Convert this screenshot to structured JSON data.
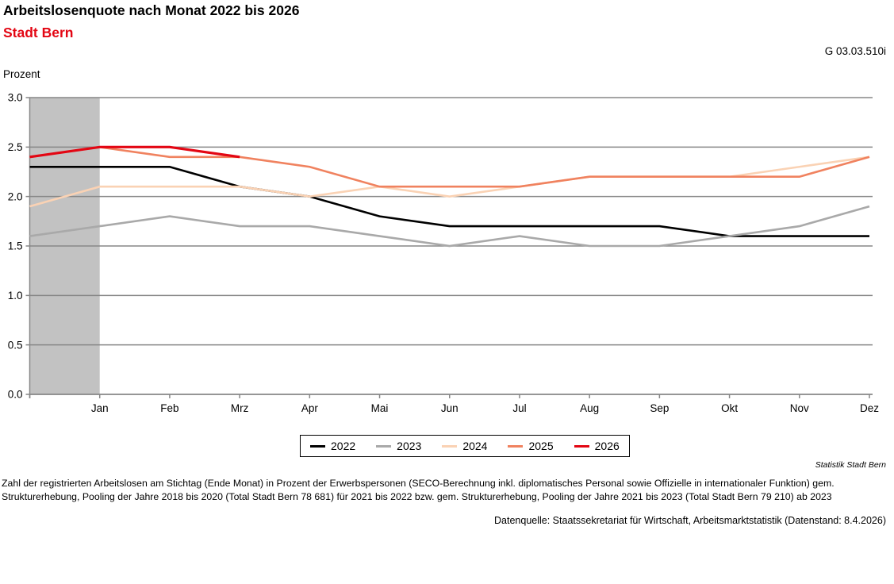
{
  "header": {
    "title": "Arbeitslosenquote nach Monat 2022 bis 2026",
    "subtitle": "Stadt Bern",
    "subtitle_color": "#e30613",
    "figure_code": "G 03.03.510i"
  },
  "chart_data": {
    "type": "line",
    "title": "Arbeitslosenquote nach Monat 2022 bis 2026",
    "subtitle": "Stadt Bern",
    "ylabel": "Prozent",
    "ylim": [
      0.0,
      3.0
    ],
    "ytick_step": 0.5,
    "ytick_labels": [
      "0.0",
      "0.5",
      "1.0",
      "1.5",
      "2.0",
      "2.5",
      "3.0"
    ],
    "x_labels": [
      "Jan",
      "Feb",
      "Mrz",
      "Apr",
      "Mai",
      "Jun",
      "Jul",
      "Aug",
      "Sep",
      "Okt",
      "Nov",
      "Dez"
    ],
    "x_start_note": "each series starts at the left plot edge with the previous year's December value",
    "grid": true,
    "axis_color": "#878787",
    "legend_position": "bottom-center",
    "highlight_band": {
      "from": "plot-left-edge",
      "to": "Jan",
      "color": "#c2c2c2"
    },
    "series": [
      {
        "name": "2022",
        "color": "#000000",
        "values_with_prev_dec": [
          2.3,
          2.3,
          2.3,
          2.1,
          2.0,
          1.8,
          1.7,
          1.7,
          1.7,
          1.7,
          1.6,
          1.6,
          1.6
        ]
      },
      {
        "name": "2023",
        "color": "#a9a9a9",
        "values_with_prev_dec": [
          1.6,
          1.7,
          1.8,
          1.7,
          1.7,
          1.6,
          1.5,
          1.6,
          1.5,
          1.5,
          1.6,
          1.7,
          1.9
        ]
      },
      {
        "name": "2024",
        "color": "#fad2b4",
        "values_with_prev_dec": [
          1.9,
          2.1,
          2.1,
          2.1,
          2.0,
          2.1,
          2.0,
          2.1,
          2.2,
          2.2,
          2.2,
          2.3,
          2.4
        ]
      },
      {
        "name": "2025",
        "color": "#f0825f",
        "values_with_prev_dec": [
          2.4,
          2.5,
          2.4,
          2.4,
          2.3,
          2.1,
          2.1,
          2.1,
          2.2,
          2.2,
          2.2,
          2.2,
          2.4
        ]
      },
      {
        "name": "2026",
        "color": "#e30613",
        "values_with_prev_dec": [
          2.4,
          2.5,
          2.5,
          2.4
        ]
      }
    ]
  },
  "footer": {
    "publisher": "Statistik Stadt Bern",
    "footnote_line1": "Zahl der registrierten Arbeitslosen am Stichtag (Ende Monat) in Prozent der Erwerbspersonen (SECO-Berechnung inkl. diplomatisches Personal sowie Offizielle in internationaler Funktion) gem.",
    "footnote_line2": "Strukturerhebung, Pooling der Jahre 2018 bis 2020 (Total Stadt Bern 78 681) für 2021 bis 2022 bzw. gem. Strukturerhebung, Pooling der Jahre 2021 bis 2023 (Total Stadt Bern 79 210) ab 2023",
    "datasource": "Datenquelle: Staatssekretariat für Wirtschaft, Arbeitsmarktstatistik (Datenstand: 8.4.2026)"
  }
}
